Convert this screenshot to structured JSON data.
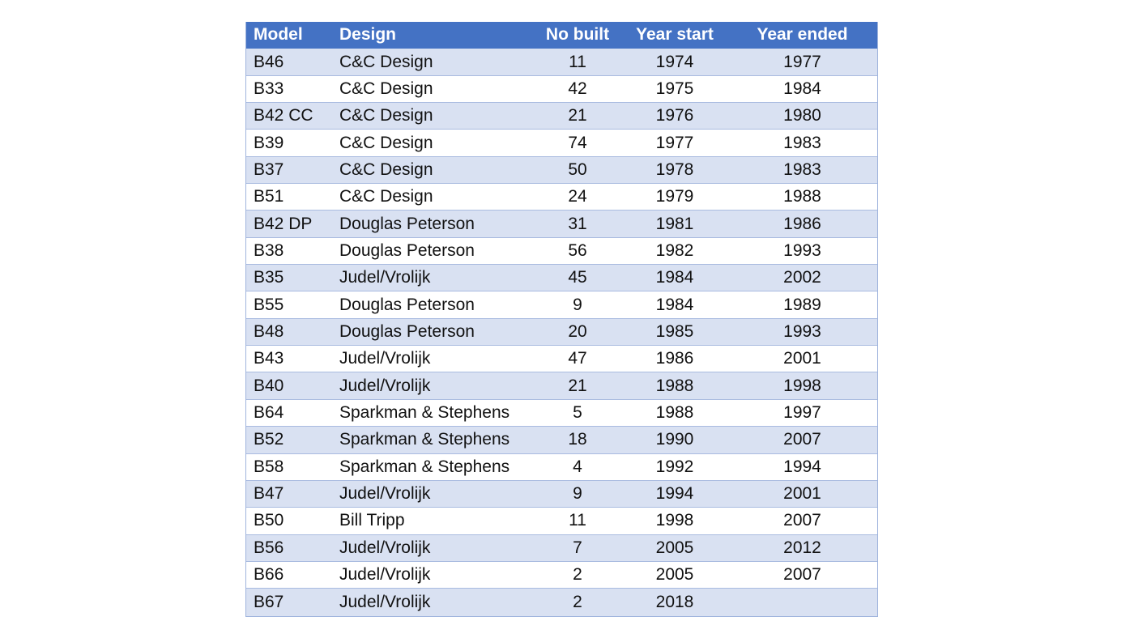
{
  "table": {
    "headers": {
      "model": "Model",
      "design": "Design",
      "built": "No built",
      "start": "Year start",
      "end": "Year ended"
    },
    "rows": [
      {
        "model": "B46",
        "design": "C&C Design",
        "built": "11",
        "start": "1974",
        "end": "1977"
      },
      {
        "model": "B33",
        "design": "C&C Design",
        "built": "42",
        "start": "1975",
        "end": "1984"
      },
      {
        "model": "B42 CC",
        "design": "C&C Design",
        "built": "21",
        "start": "1976",
        "end": "1980"
      },
      {
        "model": "B39",
        "design": "C&C Design",
        "built": "74",
        "start": "1977",
        "end": "1983"
      },
      {
        "model": "B37",
        "design": "C&C Design",
        "built": "50",
        "start": "1978",
        "end": "1983"
      },
      {
        "model": "B51",
        "design": "C&C Design",
        "built": "24",
        "start": "1979",
        "end": "1988"
      },
      {
        "model": "B42 DP",
        "design": "Douglas Peterson",
        "built": "31",
        "start": "1981",
        "end": "1986"
      },
      {
        "model": "B38",
        "design": "Douglas Peterson",
        "built": "56",
        "start": "1982",
        "end": "1993"
      },
      {
        "model": "B35",
        "design": "Judel/Vrolijk",
        "built": "45",
        "start": "1984",
        "end": "2002"
      },
      {
        "model": "B55",
        "design": "Douglas Peterson",
        "built": "9",
        "start": "1984",
        "end": "1989"
      },
      {
        "model": "B48",
        "design": "Douglas Peterson",
        "built": "20",
        "start": "1985",
        "end": "1993"
      },
      {
        "model": "B43",
        "design": "Judel/Vrolijk",
        "built": "47",
        "start": "1986",
        "end": "2001"
      },
      {
        "model": "B40",
        "design": "Judel/Vrolijk",
        "built": "21",
        "start": "1988",
        "end": "1998"
      },
      {
        "model": "B64",
        "design": "Sparkman & Stephens",
        "built": "5",
        "start": "1988",
        "end": "1997"
      },
      {
        "model": "B52",
        "design": "Sparkman & Stephens",
        "built": "18",
        "start": "1990",
        "end": "2007"
      },
      {
        "model": "B58",
        "design": "Sparkman & Stephens",
        "built": "4",
        "start": "1992",
        "end": "1994"
      },
      {
        "model": "B47",
        "design": "Judel/Vrolijk",
        "built": "9",
        "start": "1994",
        "end": "2001"
      },
      {
        "model": "B50",
        "design": "Bill Tripp",
        "built": "11",
        "start": "1998",
        "end": "2007"
      },
      {
        "model": "B56",
        "design": "Judel/Vrolijk",
        "built": "7",
        "start": "2005",
        "end": "2012"
      },
      {
        "model": "B66",
        "design": "Judel/Vrolijk",
        "built": "2",
        "start": "2005",
        "end": "2007"
      },
      {
        "model": "B67",
        "design": "Judel/Vrolijk",
        "built": "2",
        "start": "2018",
        "end": ""
      }
    ]
  },
  "colors": {
    "header_bg": "#4472c4",
    "band_bg": "#d9e1f2",
    "plain_bg": "#ffffff"
  }
}
